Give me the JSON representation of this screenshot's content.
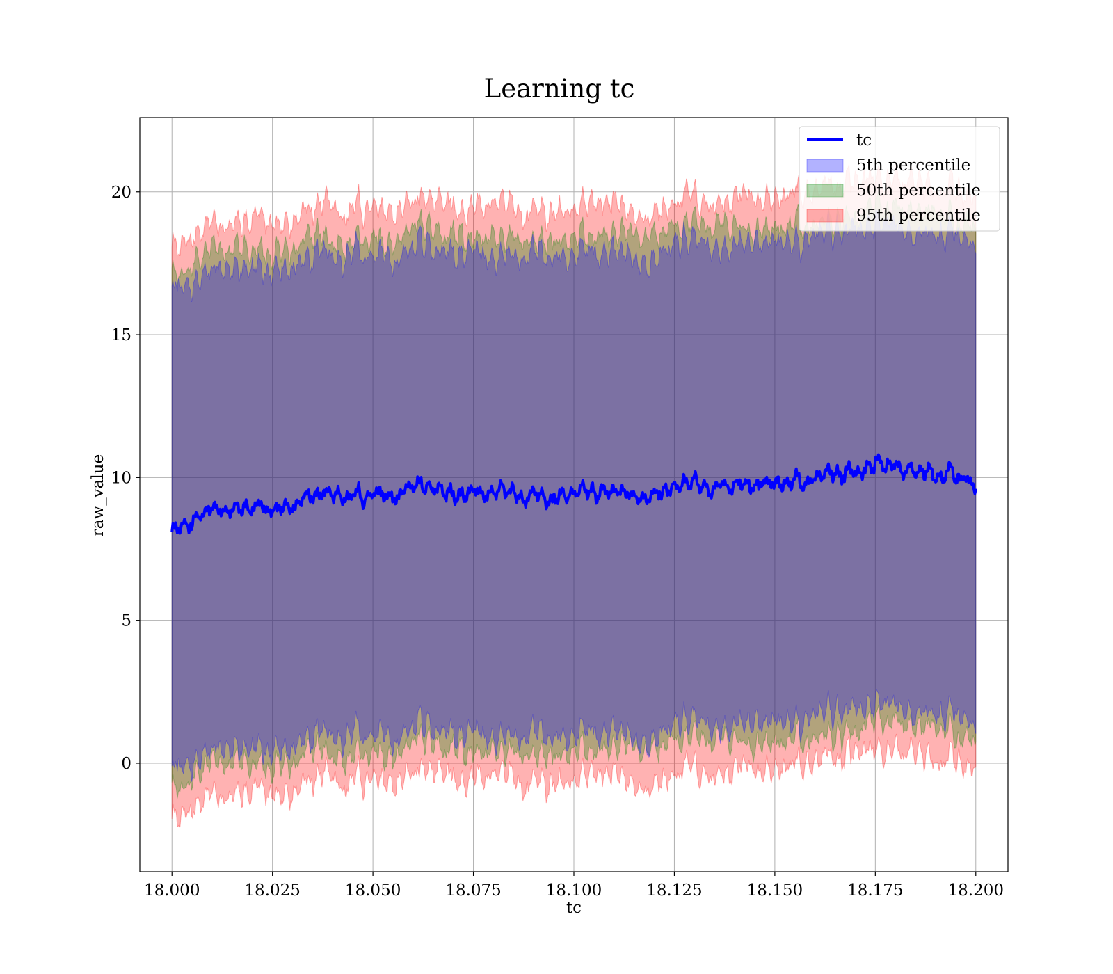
{
  "chart_data": {
    "type": "line",
    "title": "Learning tc",
    "xlabel": "tc",
    "ylabel": "raw_value",
    "xlim": [
      17.992,
      18.208
    ],
    "ylim": [
      -3.8,
      22.6
    ],
    "x_ticks": [
      18.0,
      18.025,
      18.05,
      18.075,
      18.1,
      18.125,
      18.15,
      18.175,
      18.2
    ],
    "x_tick_labels": [
      "18.000",
      "18.025",
      "18.050",
      "18.075",
      "18.100",
      "18.125",
      "18.150",
      "18.175",
      "18.200"
    ],
    "y_ticks": [
      0,
      5,
      10,
      15,
      20
    ],
    "y_tick_labels": [
      "0",
      "5",
      "10",
      "15",
      "20"
    ],
    "grid": true,
    "legend_position": "top-right",
    "line_series": {
      "name": "tc",
      "color": "#0000ff",
      "x": [
        18.0,
        18.005,
        18.01,
        18.015,
        18.02,
        18.025,
        18.03,
        18.035,
        18.04,
        18.045,
        18.05,
        18.055,
        18.06,
        18.065,
        18.07,
        18.075,
        18.08,
        18.085,
        18.09,
        18.095,
        18.1,
        18.105,
        18.11,
        18.115,
        18.12,
        18.125,
        18.13,
        18.135,
        18.14,
        18.145,
        18.15,
        18.155,
        18.16,
        18.165,
        18.17,
        18.175,
        18.18,
        18.185,
        18.19,
        18.195,
        18.2
      ],
      "values": [
        8.2,
        8.3,
        9.0,
        8.8,
        9.0,
        8.9,
        9.0,
        9.3,
        9.4,
        9.3,
        9.5,
        9.4,
        9.6,
        9.5,
        9.4,
        9.5,
        9.4,
        9.5,
        9.3,
        9.4,
        9.4,
        9.4,
        9.5,
        9.5,
        9.3,
        9.6,
        9.8,
        9.6,
        9.8,
        9.7,
        9.8,
        9.9,
        10.0,
        10.0,
        10.2,
        10.6,
        10.5,
        10.2,
        10.1,
        10.2,
        9.6
      ]
    },
    "band_series": [
      {
        "name": "5th percentile",
        "color": "#0000ff",
        "half_width": 8.4
      },
      {
        "name": "50th percentile",
        "color": "#008000",
        "half_width": 9.0
      },
      {
        "name": "95th percentile",
        "color": "#ff0000",
        "half_width": 10.0
      }
    ]
  }
}
